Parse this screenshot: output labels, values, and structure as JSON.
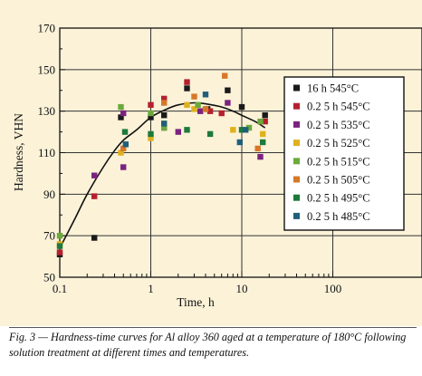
{
  "chart_data": {
    "type": "scatter",
    "xscale": "log",
    "xlim": [
      0.1,
      100
    ],
    "ylim": [
      50,
      170
    ],
    "xlabel": "Time, h",
    "ylabel": "Hardness, VHN",
    "x_ticks": [
      0.1,
      1,
      10,
      100
    ],
    "x_tick_labels": [
      "0.1",
      "1",
      "10",
      "100"
    ],
    "y_ticks": [
      50,
      70,
      90,
      110,
      130,
      150,
      170
    ],
    "y_tick_labels": [
      "50",
      "70",
      "90",
      "110",
      "130",
      "150",
      "170"
    ],
    "grid": true,
    "legend_position": "right",
    "series": [
      {
        "name": "16 h 545°C",
        "color": "#1a1a1a",
        "points": [
          [
            0.1,
            61
          ],
          [
            0.24,
            69
          ],
          [
            0.47,
            127
          ],
          [
            1.0,
            127
          ],
          [
            1.4,
            128
          ],
          [
            2.5,
            141
          ],
          [
            4.2,
            131
          ],
          [
            7.0,
            140
          ],
          [
            10.0,
            132
          ],
          [
            18.0,
            128
          ]
        ]
      },
      {
        "name": "0.2 5 h 545°C",
        "color": "#b5202e",
        "points": [
          [
            0.1,
            62
          ],
          [
            0.24,
            89
          ],
          [
            1.0,
            133
          ],
          [
            1.4,
            136
          ],
          [
            2.5,
            144
          ],
          [
            4.5,
            130
          ],
          [
            6.0,
            129
          ],
          [
            18.0,
            125
          ]
        ]
      },
      {
        "name": "0.2 5 h 535°C",
        "color": "#7b2280",
        "points": [
          [
            0.24,
            99
          ],
          [
            0.5,
            103
          ],
          [
            0.5,
            129
          ],
          [
            1.4,
            122
          ],
          [
            2.0,
            120
          ],
          [
            3.5,
            130
          ],
          [
            7.0,
            134
          ],
          [
            16.0,
            108
          ]
        ]
      },
      {
        "name": "0.2 5 h 525°C",
        "color": "#e0b11f",
        "points": [
          [
            0.1,
            66
          ],
          [
            0.47,
            110
          ],
          [
            1.0,
            117
          ],
          [
            1.4,
            124
          ],
          [
            2.5,
            133
          ],
          [
            3.0,
            131
          ],
          [
            8.0,
            121
          ],
          [
            17.0,
            119
          ]
        ]
      },
      {
        "name": "0.2 5 h 515°C",
        "color": "#6aaa3a",
        "points": [
          [
            0.1,
            70
          ],
          [
            0.47,
            132
          ],
          [
            1.0,
            129
          ],
          [
            1.4,
            122
          ],
          [
            3.3,
            133
          ],
          [
            12.0,
            122
          ],
          [
            16.0,
            125
          ]
        ]
      },
      {
        "name": "0.2 5 h 505°C",
        "color": "#d6782a",
        "points": [
          [
            0.5,
            112
          ],
          [
            1.4,
            134
          ],
          [
            3.0,
            137
          ],
          [
            4.0,
            131
          ],
          [
            6.5,
            147
          ],
          [
            15.0,
            112
          ]
        ]
      },
      {
        "name": "0.2 5 h 495°C",
        "color": "#1d7a3a",
        "points": [
          [
            0.1,
            65
          ],
          [
            0.52,
            120
          ],
          [
            1.0,
            119
          ],
          [
            2.5,
            121
          ],
          [
            4.5,
            119
          ],
          [
            10.0,
            121
          ],
          [
            17.0,
            115
          ]
        ]
      },
      {
        "name": "0.2 5 h 485°C",
        "color": "#1f5f7a",
        "points": [
          [
            0.53,
            114
          ],
          [
            1.4,
            124
          ],
          [
            4.0,
            138
          ],
          [
            9.5,
            115
          ],
          [
            11.0,
            121
          ]
        ]
      }
    ],
    "fit_curve": {
      "color": "#111111",
      "points": [
        [
          0.1,
          64
        ],
        [
          0.15,
          79
        ],
        [
          0.2,
          90
        ],
        [
          0.3,
          103
        ],
        [
          0.4,
          111
        ],
        [
          0.5,
          116
        ],
        [
          0.7,
          121
        ],
        [
          1.0,
          127
        ],
        [
          1.5,
          131
        ],
        [
          2.0,
          133
        ],
        [
          3.0,
          134
        ],
        [
          4.0,
          133.5
        ],
        [
          6.0,
          132
        ],
        [
          8.0,
          130
        ],
        [
          10.0,
          128
        ],
        [
          14.0,
          125
        ],
        [
          18.0,
          122
        ]
      ]
    }
  },
  "caption": "Fig. 3 — Hardness-time curves for Al alloy 360 aged at a temperature of 180°C following solution treatment at different times and temperatures."
}
